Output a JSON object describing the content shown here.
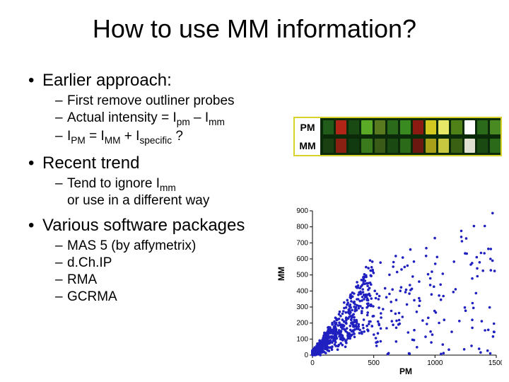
{
  "title": "How to use MM information?",
  "sections": [
    {
      "bullet": "Earlier approach:",
      "subs": [
        {
          "html": "First remove outliner probes"
        },
        {
          "html": "Actual intensity = I<span class=\"sub\">pm</span> – I<span class=\"sub\">mm</span>"
        },
        {
          "html": "I<span class=\"sub\">PM</span> = I<span class=\"sub\">MM</span> + I<span class=\"sub\">specific</span> ?"
        }
      ]
    },
    {
      "bullet": "Recent trend",
      "subs": [
        {
          "html": "Tend to ignore I<span class=\"sub\">mm</span><br>or use in a different way"
        }
      ]
    },
    {
      "bullet": "Various software packages",
      "subs": [
        {
          "html": "MAS 5 (by affymetrix)"
        },
        {
          "html": "d.Ch.IP"
        },
        {
          "html": "RMA"
        },
        {
          "html": "GCRMA"
        }
      ]
    }
  ],
  "pmmm": {
    "border_color": "#d7d32a",
    "background": "#0a2a0a",
    "rows": [
      {
        "label": "PM",
        "cells": [
          "#225c1a",
          "#b02515",
          "#1a4a14",
          "#5aaa28",
          "#5a7a20",
          "#2a6a1a",
          "#3a8a22",
          "#8a1a12",
          "#d2c820",
          "#e8e868",
          "#508018",
          "#ffffff",
          "#2a6a1a",
          "#4a8a22"
        ]
      },
      {
        "label": "MM",
        "cells": [
          "#1a4012",
          "#8a2012",
          "#123a10",
          "#3a7a1c",
          "#3a5a18",
          "#1a4a12",
          "#2a6a18",
          "#6a1810",
          "#a8a018",
          "#c8c840",
          "#3a6014",
          "#e0e0d0",
          "#1a4a12",
          "#2a6a18"
        ]
      }
    ]
  },
  "scatter": {
    "xlabel": "PM",
    "ylabel": "MM",
    "xlim": [
      0,
      1500
    ],
    "ylim": [
      0,
      900
    ],
    "xticks": [
      0,
      500,
      1000,
      1500
    ],
    "yticks": [
      0,
      100,
      200,
      300,
      400,
      500,
      600,
      700,
      800,
      900
    ],
    "point_color": "#2020c0",
    "point_radius": 1.8,
    "background": "#ffffff",
    "n_points": 900,
    "cluster_max_pm": 500,
    "cluster_max_mm": 400,
    "density_exponent": 2.2
  }
}
